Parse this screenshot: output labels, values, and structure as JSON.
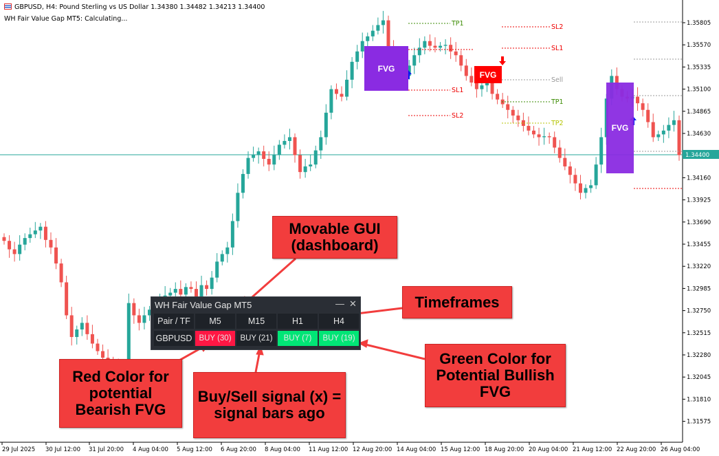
{
  "header": {
    "symbol_line": "GBPUSD, H4:  Pound Sterling vs US Dollar  1.34380 1.34482 1.34213 1.34400",
    "indicator_line": "WH Fair Value Gap MT5: Calculating..."
  },
  "chart_data": {
    "type": "candlestick",
    "symbol": "GBPUSD",
    "timeframe": "H4",
    "colors": {
      "bull": "#26a69a",
      "bear": "#ef5350",
      "current_price_line": "#26a69a"
    },
    "current_price": "1.34400",
    "price_ticks": [
      "1.35805",
      "1.35570",
      "1.35335",
      "1.35100",
      "1.34865",
      "1.34630",
      "1.34160",
      "1.33925",
      "1.33690",
      "1.33455",
      "1.33220",
      "1.32985",
      "1.32750",
      "1.32515",
      "1.32280",
      "1.32045",
      "1.31810",
      "1.31575"
    ],
    "ylim": [
      1.3135,
      1.36
    ],
    "time_ticks": [
      "29 Jul 2025",
      "30 Jul 12:00",
      "31 Jul 20:00",
      "4 Aug 04:00",
      "5 Aug 12:00",
      "6 Aug 20:00",
      "8 Aug 04:00",
      "11 Aug 12:00",
      "12 Aug 20:00",
      "14 Aug 04:00",
      "15 Aug 12:00",
      "18 Aug 20:00",
      "20 Aug 04:00",
      "21 Aug 12:00",
      "22 Aug 20:00",
      "26 Aug 04:00"
    ],
    "closes": [
      1.3349,
      1.334,
      1.3335,
      1.3345,
      1.3352,
      1.3356,
      1.336,
      1.3364,
      1.335,
      1.3342,
      1.3325,
      1.3305,
      1.327,
      1.3247,
      1.3255,
      1.3262,
      1.325,
      1.324,
      1.3232,
      1.3225,
      1.3222,
      1.3218,
      1.3205,
      1.3196,
      1.3283,
      1.327,
      1.3262,
      1.327,
      1.3276,
      1.328,
      1.3285,
      1.3291,
      1.3294,
      1.3298,
      1.3292,
      1.33,
      1.3298,
      1.329,
      1.3302,
      1.3298,
      1.331,
      1.3327,
      1.3335,
      1.3342,
      1.337,
      1.34,
      1.342,
      1.3437,
      1.344,
      1.3444,
      1.3436,
      1.343,
      1.344,
      1.3451,
      1.3455,
      1.3459,
      1.344,
      1.3422,
      1.3428,
      1.343,
      1.3445,
      1.3459,
      1.3485,
      1.351,
      1.3505,
      1.3502,
      1.352,
      1.3539,
      1.355,
      1.3561,
      1.3566,
      1.3572,
      1.3578,
      1.3583,
      1.3555,
      1.3532,
      1.3528,
      1.3524,
      1.3535,
      1.3546,
      1.3554,
      1.3561,
      1.3556,
      1.3554,
      1.3556,
      1.3557,
      1.355,
      1.3546,
      1.3535,
      1.3524,
      1.3517,
      1.351,
      1.3514,
      1.3517,
      1.3505,
      1.3499,
      1.3494,
      1.3488,
      1.3482,
      1.3477,
      1.3471,
      1.3466,
      1.3462,
      1.3459,
      1.346,
      1.3459,
      1.3448,
      1.3437,
      1.3428,
      1.3419,
      1.341,
      1.34,
      1.3405,
      1.3408,
      1.343,
      1.3459,
      1.35,
      1.3524,
      1.351,
      1.3502,
      1.35,
      1.3502,
      1.3495,
      1.3488,
      1.3475,
      1.3459,
      1.3462,
      1.3466,
      1.3472,
      1.3477,
      1.344
    ]
  },
  "fvg": {
    "label": "FVG",
    "bullish_color": "#8a2be2",
    "bearish_color": "#ff0000"
  },
  "levels": {
    "tp1": "TP1",
    "sl1": "SL1",
    "sl2": "SL2",
    "sell": "Sell",
    "tp2": "TP2"
  },
  "dashboard": {
    "title": "WH Fair Value Gap MT5",
    "minimize": "—",
    "close": "✕",
    "header": [
      "Pair / TF",
      "M5",
      "M15",
      "H1",
      "H4"
    ],
    "row": {
      "pair": "GBPUSD",
      "signals": [
        {
          "text": "BUY (30)",
          "color": "#ff1744"
        },
        {
          "text": "BUY (21)",
          "color": "#1e2228"
        },
        {
          "text": "BUY (7)",
          "color": "#00e676"
        },
        {
          "text": "BUY (19)",
          "color": "#00e676"
        }
      ]
    }
  },
  "callouts": {
    "gui": "Movable GUI (dashboard)",
    "timeframes": "Timeframes",
    "red": "Red Color for potential Bearish FVG",
    "signal": "Buy/Sell signal (x) = signal bars ago",
    "green": "Green Color for Potential Bullish FVG"
  }
}
